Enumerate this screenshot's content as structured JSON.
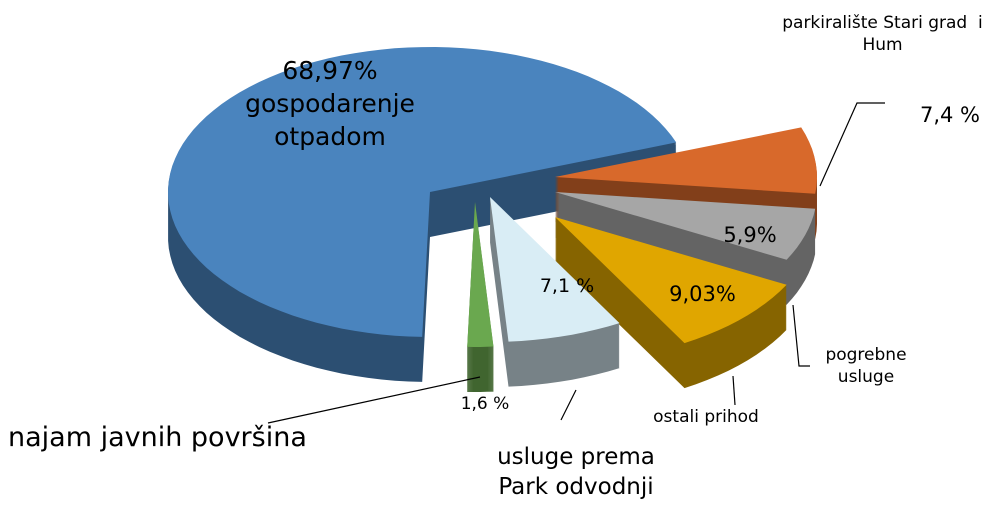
{
  "chart_data": {
    "type": "pie3d",
    "categories": [
      "gospodarenje otpadom",
      "parkiralište Stari grad  i Hum",
      "pogrebne usluge",
      "ostali prihod",
      "usluge prema Park odvodnji",
      "najam javnih površina"
    ],
    "values": [
      68.97,
      7.4,
      5.9,
      9.03,
      7.1,
      1.6
    ],
    "value_labels": [
      "68,97%",
      "7,4 %",
      "5,9%",
      "9,03%",
      "7,1 %",
      "1,6 %"
    ],
    "colors": [
      "#4a84be",
      "#d8692b",
      "#a6a6a6",
      "#e0a600",
      "#d9edf5",
      "#6aa84f"
    ]
  }
}
